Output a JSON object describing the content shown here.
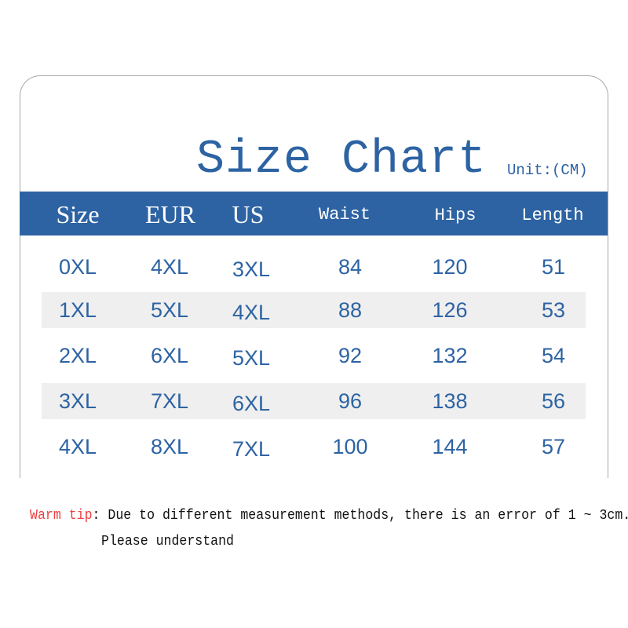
{
  "title": "Size Chart",
  "unit": "Unit:(CM)",
  "colors": {
    "accent": "#2d63a3",
    "stripe": "#efefef",
    "tip_label": "#ef4040"
  },
  "headers": [
    "Size",
    "EUR",
    "US",
    "Waist",
    "Hips",
    "Length"
  ],
  "rows": [
    [
      "0XL",
      "4XL",
      "3XL",
      "84",
      "120",
      "51"
    ],
    [
      "1XL",
      "5XL",
      "4XL",
      "88",
      "126",
      "53"
    ],
    [
      "2XL",
      "6XL",
      "5XL",
      "92",
      "132",
      "54"
    ],
    [
      "3XL",
      "7XL",
      "6XL",
      "96",
      "138",
      "56"
    ],
    [
      "4XL",
      "8XL",
      "7XL",
      "100",
      "144",
      "57"
    ]
  ],
  "tip": {
    "label": "Warm tip",
    "text": ": Due to different measurement methods, there is an error of 1 ~ 3cm.",
    "text2": "Please understand"
  }
}
